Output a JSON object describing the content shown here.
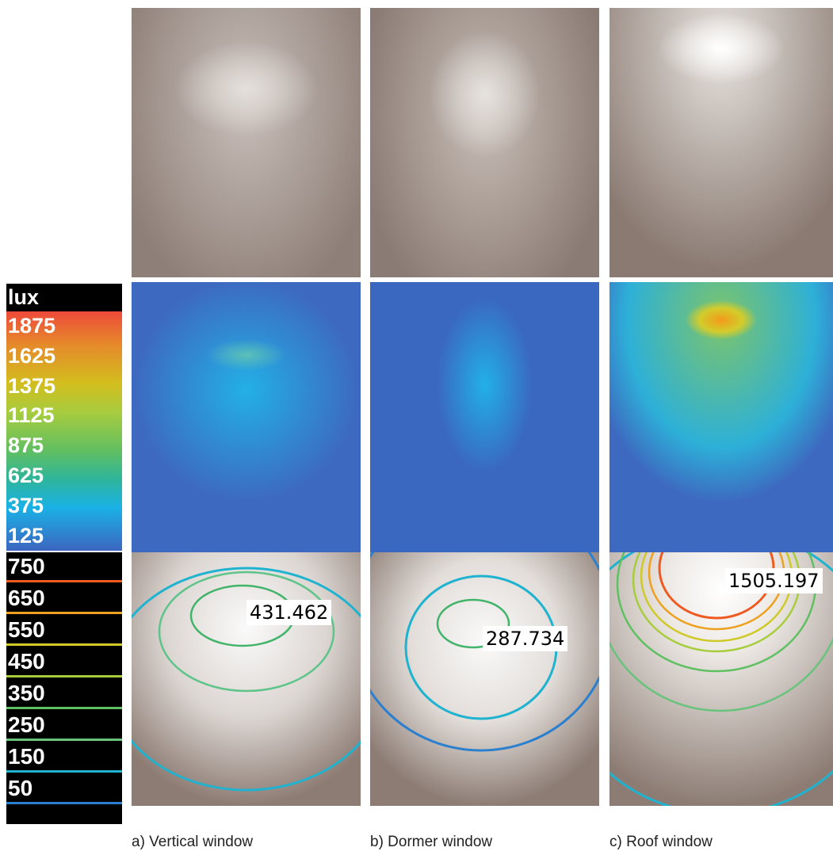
{
  "color_scale": {
    "title": "lux",
    "labels": [
      "1875",
      "1625",
      "1375",
      "1125",
      "875",
      "625",
      "375",
      "125"
    ]
  },
  "contour_legend": {
    "labels": [
      "750",
      "650",
      "550",
      "450",
      "350",
      "250",
      "150",
      "50"
    ]
  },
  "panels": [
    {
      "caption": "a) Vertical window",
      "peak_label": "431.462"
    },
    {
      "caption": "b) Dormer window",
      "peak_label": "287.734"
    },
    {
      "caption": "c) Roof window",
      "peak_label": "1505.197"
    }
  ]
}
